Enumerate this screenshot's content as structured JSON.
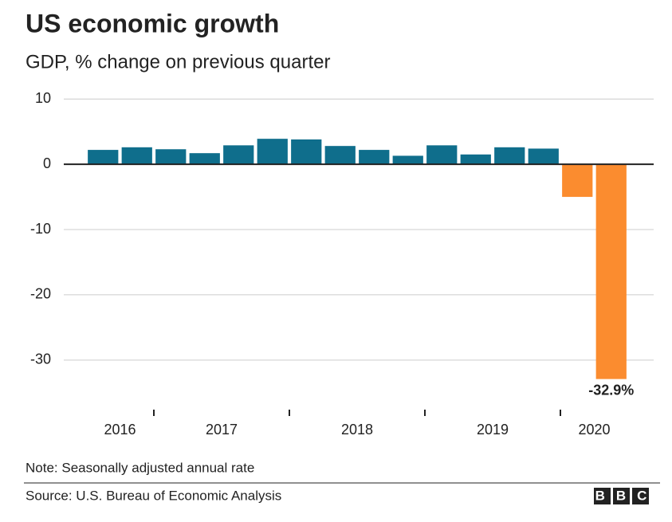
{
  "chart_data": {
    "type": "bar",
    "title": "US economic growth",
    "subtitle": "GDP, % change on previous quarter",
    "categories": [
      "2016",
      null,
      "2017",
      null,
      null,
      null,
      "2018",
      null,
      null,
      null,
      "2019",
      null,
      null,
      null,
      "2020",
      null
    ],
    "values": [
      2.2,
      2.6,
      2.3,
      1.7,
      2.9,
      3.9,
      3.8,
      2.8,
      2.2,
      1.3,
      2.9,
      1.5,
      2.6,
      2.4,
      -5.0,
      -32.9
    ],
    "value_labels": [
      null,
      null,
      null,
      null,
      null,
      null,
      null,
      null,
      null,
      null,
      null,
      null,
      null,
      null,
      null,
      "-32.9%"
    ],
    "colors": [
      "#0f6e8c",
      "#0f6e8c",
      "#0f6e8c",
      "#0f6e8c",
      "#0f6e8c",
      "#0f6e8c",
      "#0f6e8c",
      "#0f6e8c",
      "#0f6e8c",
      "#0f6e8c",
      "#0f6e8c",
      "#0f6e8c",
      "#0f6e8c",
      "#0f6e8c",
      "#fb8c2f",
      "#fb8c2f"
    ],
    "ylim": [
      -36,
      11
    ],
    "yticks": [
      10,
      0,
      -10,
      -20,
      -30
    ],
    "grid": true,
    "note": "Note: Seasonally adjusted annual rate",
    "source": "Source: U.S. Bureau of Economic Analysis",
    "logo": "BBC"
  }
}
